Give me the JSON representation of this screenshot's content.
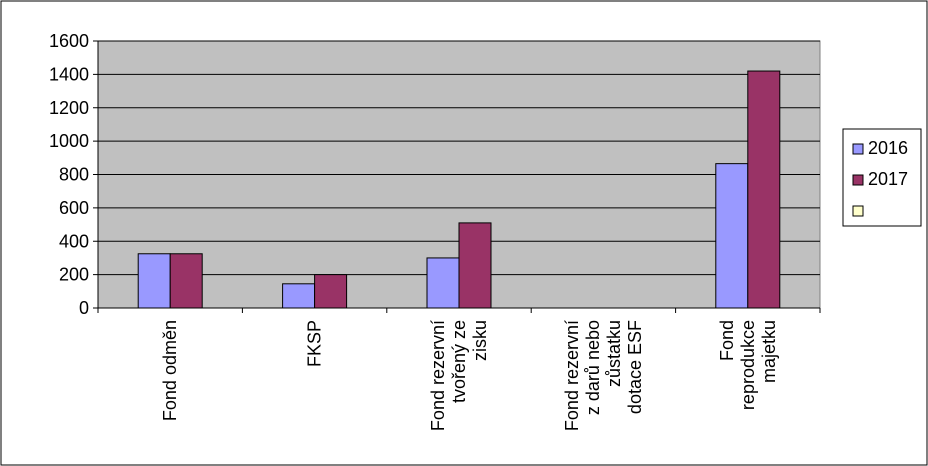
{
  "chart_data": {
    "type": "bar",
    "categories": [
      [
        "Fond odměn"
      ],
      [
        "FKSP"
      ],
      [
        "Fond rezervní",
        "tvořený ze",
        "zisku"
      ],
      [
        "Fond rezervní",
        "z darů nebo",
        "zůstatku",
        "dotace ESF"
      ],
      [
        "Fond",
        "reprodukce",
        "majetku"
      ]
    ],
    "series": [
      {
        "name": "2016",
        "color": "#9999ff",
        "values": [
          325,
          145,
          300,
          0,
          865
        ]
      },
      {
        "name": "2017",
        "color": "#993366",
        "values": [
          325,
          200,
          510,
          0,
          1420
        ]
      },
      {
        "name": "",
        "color": "#ffffcc",
        "values": [
          0,
          0,
          0,
          0,
          0
        ]
      }
    ],
    "ylim": [
      0,
      1600
    ],
    "yticks": [
      0,
      200,
      400,
      600,
      800,
      1000,
      1200,
      1400,
      1600
    ],
    "grid": true,
    "plot_background": "#c0c0c0",
    "legend_position": "right"
  }
}
